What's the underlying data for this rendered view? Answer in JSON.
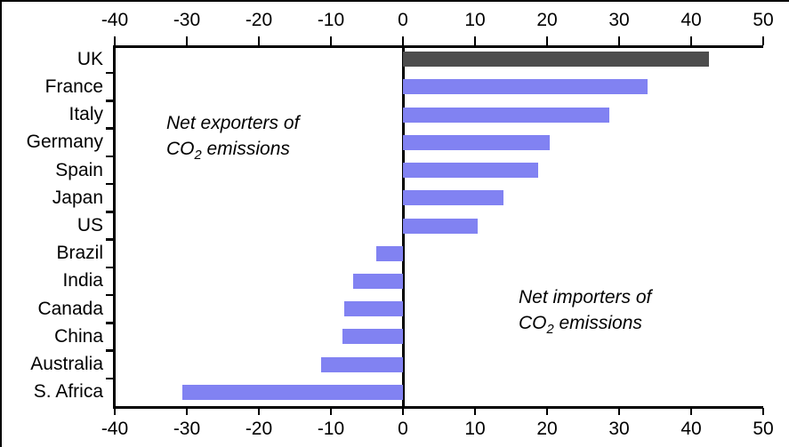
{
  "chart_data": {
    "type": "bar",
    "orientation": "horizontal",
    "title": "",
    "xlabel": "",
    "ylabel": "",
    "categories": [
      "UK",
      "France",
      "Italy",
      "Germany",
      "Spain",
      "Japan",
      "US",
      "Brazil",
      "India",
      "Canada",
      "China",
      "Australia",
      "S. Africa"
    ],
    "values": [
      42.5,
      34.0,
      28.7,
      20.4,
      18.8,
      14.0,
      10.4,
      -3.7,
      -6.9,
      -8.2,
      -8.4,
      -11.3,
      -30.6
    ],
    "xlim": [
      -40,
      50
    ],
    "x_ticks": [
      -40,
      -30,
      -20,
      -10,
      0,
      10,
      20,
      30,
      40,
      50
    ],
    "x_tick_labels": [
      "-40",
      "-30",
      "-20",
      "-10",
      "0",
      "10",
      "20",
      "30",
      "40",
      "50"
    ],
    "grid": false,
    "legend": "none",
    "axis_positions": [
      "top",
      "bottom"
    ],
    "zero_baseline": true,
    "bar_color": "#8182F2",
    "highlight_bar_color": "#4D4D4D",
    "highlight_index": 0,
    "axis_color": "#000000",
    "annotations": [
      {
        "id": "net-exporters",
        "line1": "Net exporters of",
        "line2_main": "CO",
        "line2_sub": "2",
        "line2_rest": " emissions",
        "side": "left"
      },
      {
        "id": "net-importers",
        "line1": "Net importers of",
        "line2_main": "CO",
        "line2_sub": "2",
        "line2_rest": " emissions",
        "side": "right"
      }
    ]
  }
}
